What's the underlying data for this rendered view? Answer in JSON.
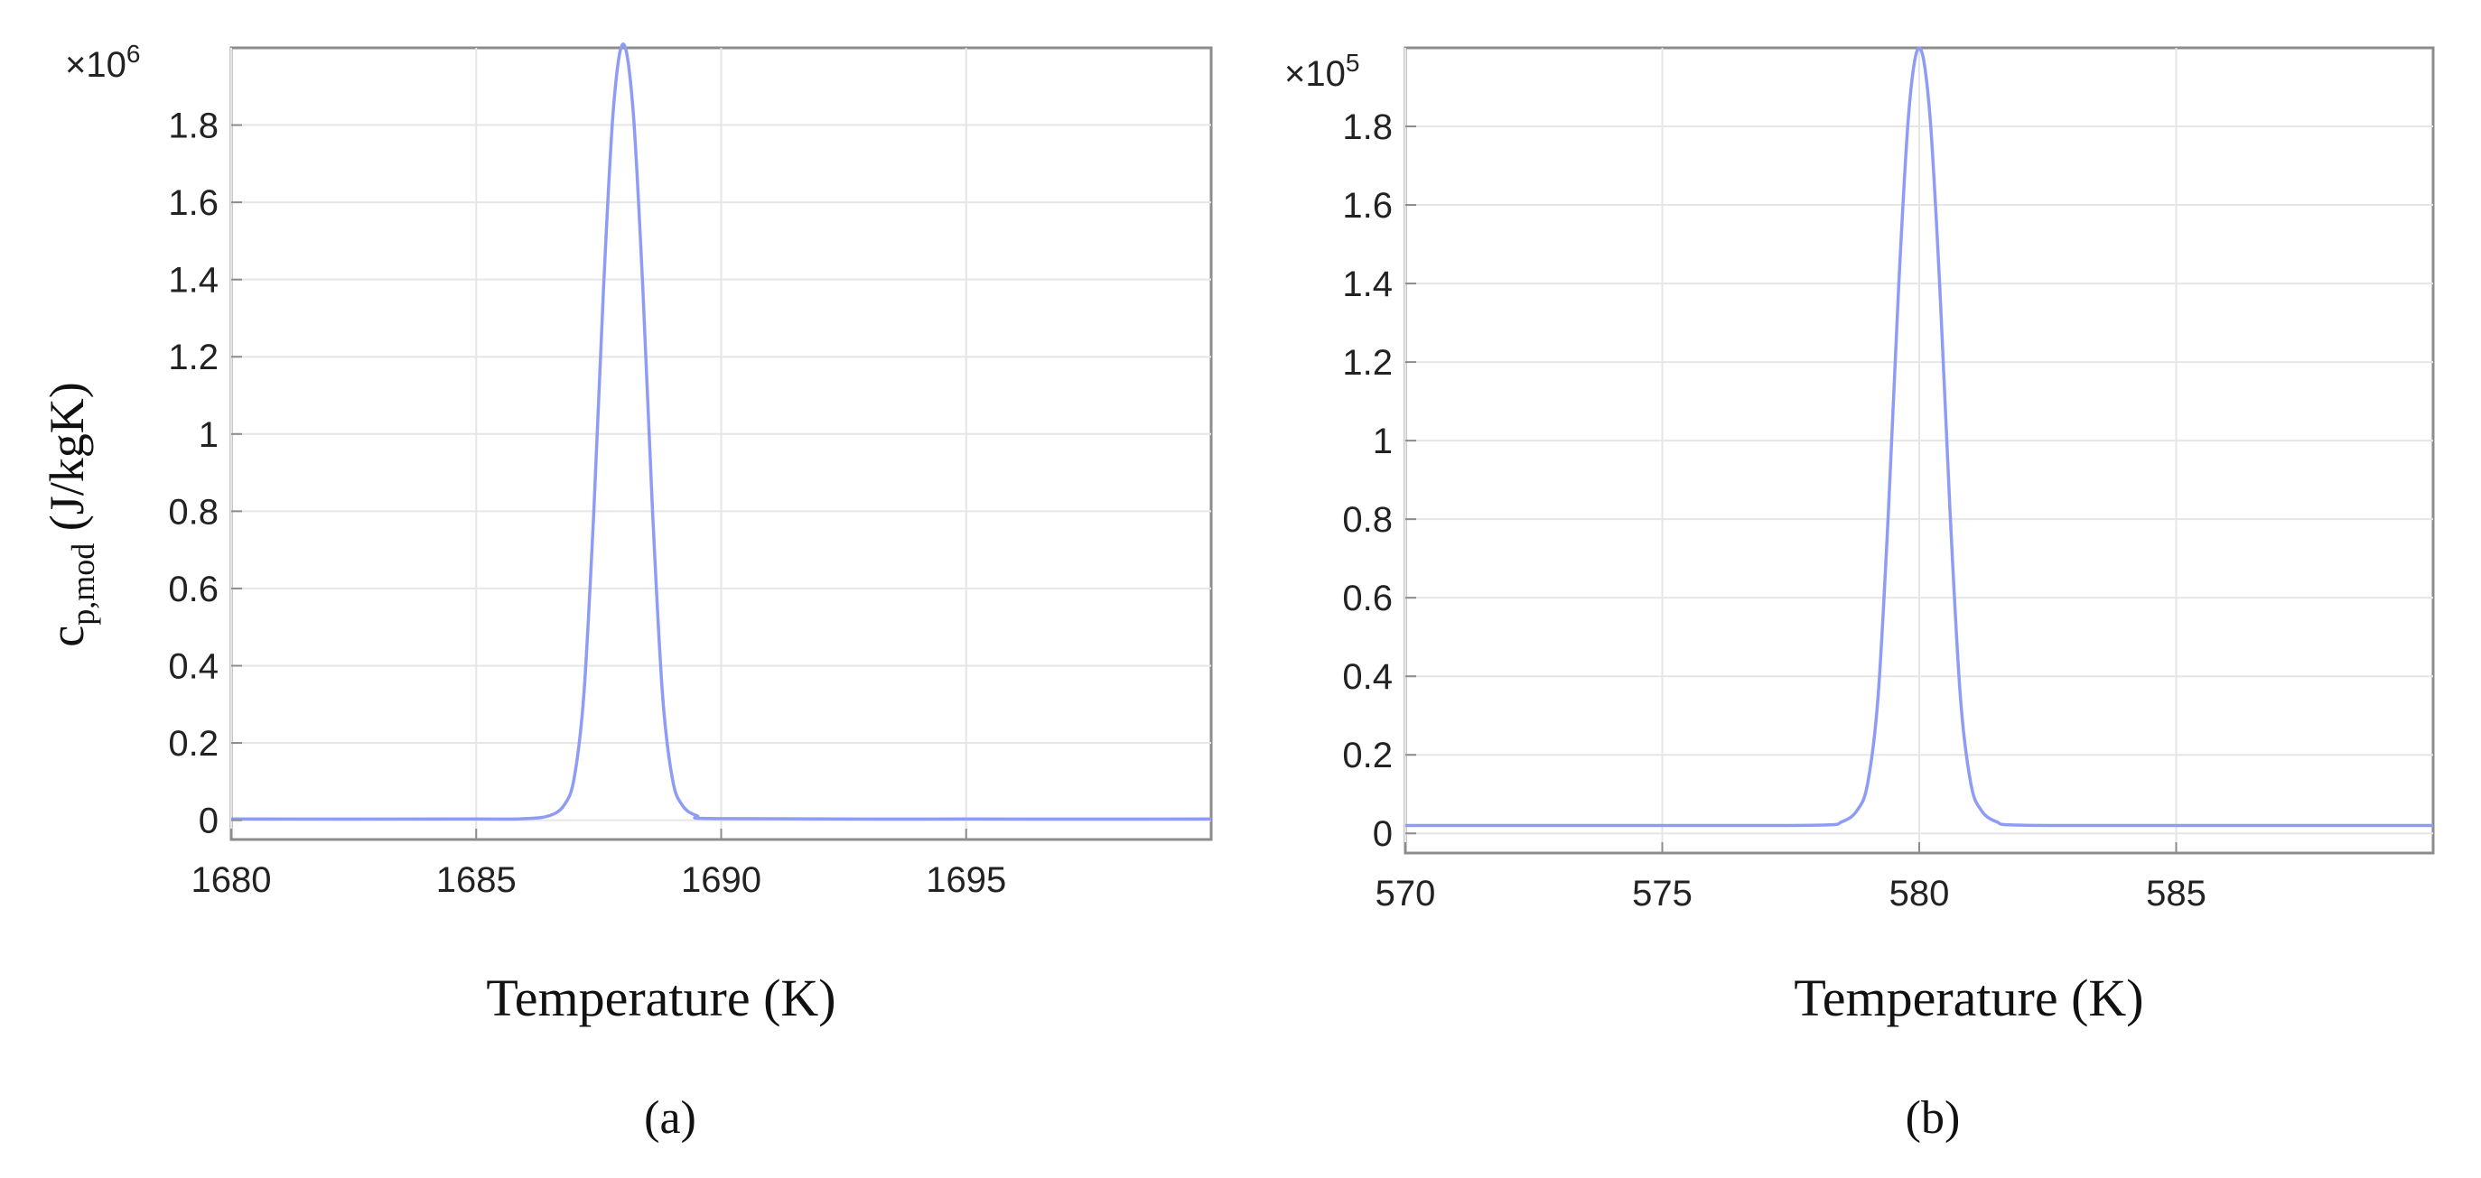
{
  "chart_data": [
    {
      "type": "line",
      "panel_label": "(a)",
      "multiplier": "×10",
      "multiplier_exp": "6",
      "ylabel_main": "c",
      "ylabel_sub": "p,mod",
      "ylabel_unit": " (J/kgK)",
      "xlabel": "Temperature (K)",
      "xlim": [
        1680,
        1700
      ],
      "ylim": [
        -0.05,
        2.0
      ],
      "xticks": [
        1680,
        1685,
        1690,
        1695
      ],
      "xtick_labels": [
        "1680",
        "1685",
        "1690",
        "1695"
      ],
      "yticks": [
        0,
        0.2,
        0.4,
        0.6,
        0.8,
        1.0,
        1.2,
        1.4,
        1.6,
        1.8
      ],
      "ytick_labels": [
        "0",
        "0.2",
        "0.4",
        "0.6",
        "0.8",
        "1",
        "1.2",
        "1.4",
        "1.6",
        "1.8"
      ],
      "grid": true,
      "line_color": "#8f9cf5",
      "series": [
        {
          "x": [
            1680,
            1685,
            1686,
            1686.5,
            1686.8,
            1687,
            1687.2,
            1687.4,
            1687.6,
            1687.8,
            1688,
            1688.2,
            1688.4,
            1688.6,
            1688.8,
            1689,
            1689.2,
            1689.5,
            1690,
            1695,
            1700
          ],
          "values": [
            0.003,
            0.003,
            0.004,
            0.012,
            0.04,
            0.11,
            0.33,
            0.8,
            1.38,
            1.84,
            2.01,
            1.84,
            1.38,
            0.8,
            0.33,
            0.11,
            0.04,
            0.012,
            0.004,
            0.003,
            0.003
          ]
        }
      ]
    },
    {
      "type": "line",
      "panel_label": "(b)",
      "multiplier": "×10",
      "multiplier_exp": "5",
      "xlabel": "Temperature (K)",
      "xlim": [
        570,
        590
      ],
      "ylim": [
        -0.05,
        2.0
      ],
      "xticks": [
        570,
        575,
        580,
        585
      ],
      "xtick_labels": [
        "570",
        "575",
        "580",
        "585"
      ],
      "yticks": [
        0,
        0.2,
        0.4,
        0.6,
        0.8,
        1.0,
        1.2,
        1.4,
        1.6,
        1.8
      ],
      "ytick_labels": [
        "0",
        "0.2",
        "0.4",
        "0.6",
        "0.8",
        "1",
        "1.2",
        "1.4",
        "1.6",
        "1.8"
      ],
      "grid": true,
      "line_color": "#8f9cf5",
      "series": [
        {
          "x": [
            570,
            575,
            578,
            578.5,
            578.8,
            579,
            579.2,
            579.4,
            579.6,
            579.8,
            580,
            580.2,
            580.4,
            580.6,
            580.8,
            581,
            581.2,
            581.5,
            582,
            585,
            590
          ],
          "values": [
            0.02,
            0.02,
            0.021,
            0.03,
            0.06,
            0.13,
            0.35,
            0.82,
            1.39,
            1.84,
            2.0,
            1.84,
            1.39,
            0.82,
            0.35,
            0.13,
            0.06,
            0.03,
            0.021,
            0.02,
            0.02
          ]
        }
      ]
    }
  ]
}
